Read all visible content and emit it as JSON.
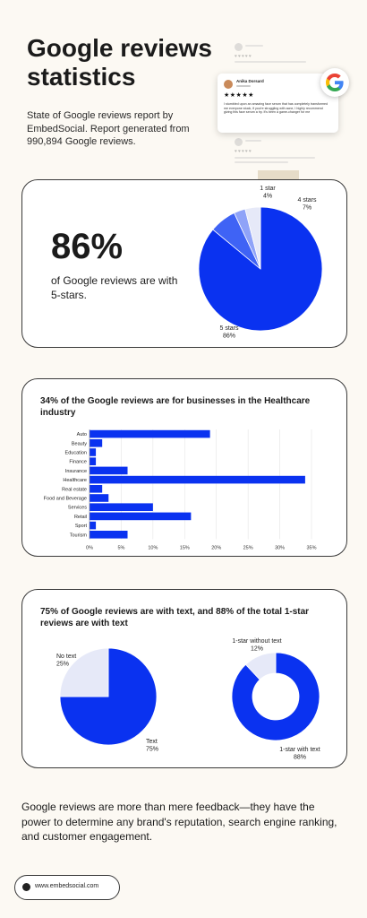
{
  "header": {
    "title": "Google reviews statistics",
    "subtitle": "State of Google reviews report by EmbedSocial. Report generated from 990,894 Google reviews."
  },
  "review_card": {
    "name": "Anika Dorsard",
    "stars": "★★★★★",
    "text": "I stumbled upon an amazing face serum that has completely transformed me everyone stuck, if you're struggling with acne, I highly recommend giving this face serum a try. It's been a game-changer for me"
  },
  "stat": {
    "percent": "86%",
    "description": "of Google reviews are with 5-stars."
  },
  "colors": {
    "accent": "#0A32F0",
    "light_blue": "#3F63F5",
    "pale": "#E6E9F8",
    "background": "#FCF9F3"
  },
  "chart_data": [
    {
      "type": "pie",
      "slices": [
        {
          "label": "5 stars",
          "value": 86,
          "display": "86%",
          "color": "#0A32F0"
        },
        {
          "label": "4 stars",
          "value": 7,
          "display": "7%",
          "color": "#3F63F5"
        },
        {
          "label": "",
          "value": 3,
          "display": "",
          "color": "#8FA3F8"
        },
        {
          "label": "1 star",
          "value": 4,
          "display": "4%",
          "color": "#E6E9F8"
        }
      ]
    },
    {
      "type": "bar",
      "orientation": "horizontal",
      "title": "34% of the Google reviews are for businesses in the Healthcare industry",
      "categories": [
        "Auto",
        "Beauty",
        "Education",
        "Finance",
        "Insurance",
        "Healthcare",
        "Real estate",
        "Food and Beverage",
        "Services",
        "Retail",
        "Sport",
        "Tourism"
      ],
      "values": [
        19,
        2,
        1,
        1,
        6,
        34,
        2,
        3,
        10,
        16,
        1,
        6
      ],
      "xlim": [
        0,
        35
      ],
      "xticks": [
        "0%",
        "5%",
        "10%",
        "15%",
        "20%",
        "25%",
        "30%",
        "35%"
      ],
      "grid": true
    },
    {
      "type": "pie",
      "title": "75% of Google reviews are with text, and 88% of the total 1-star reviews are with text",
      "slices": [
        {
          "label": "Text",
          "value": 75,
          "display": "75%",
          "color": "#0A32F0"
        },
        {
          "label": "No text",
          "value": 25,
          "display": "25%",
          "color": "#E6E9F8"
        }
      ]
    },
    {
      "type": "pie",
      "donut": true,
      "slices": [
        {
          "label": "1-star with text",
          "value": 88,
          "display": "88%",
          "color": "#0A32F0"
        },
        {
          "label": "1-star without text",
          "value": 12,
          "display": "12%",
          "color": "#E6E9F8"
        }
      ]
    }
  ],
  "footer": {
    "text": "Google reviews are more than mere feedback—they have the power to determine any brand's reputation, search engine ranking, and customer engagement.",
    "url": "www.embedsocial.com",
    "url_icon": "globe-icon"
  }
}
